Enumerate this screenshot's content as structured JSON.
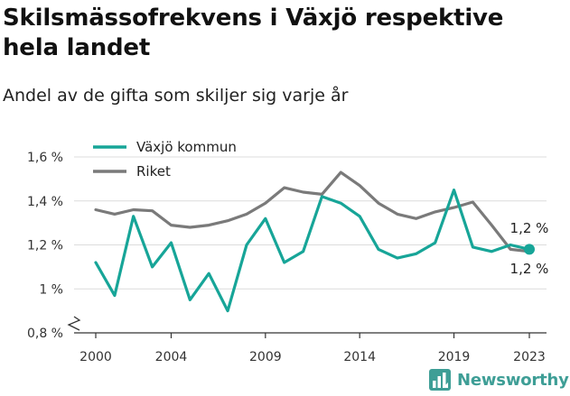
{
  "title": "Skilsmässofrekvens i Växjö respektive hela landet",
  "subtitle": "Andel av de gifta som skiljer sig varje år",
  "brand": {
    "name": "Newsworthy",
    "icon": "newsworthy-logo-icon"
  },
  "colors": {
    "vaxjo": "#17a598",
    "riket": "#7a7a7a",
    "brand": "#3e9e96",
    "grid": "#dcdcdc"
  },
  "chart_data": {
    "type": "line",
    "x": [
      2000,
      2001,
      2002,
      2003,
      2004,
      2005,
      2006,
      2007,
      2008,
      2009,
      2010,
      2011,
      2012,
      2013,
      2014,
      2015,
      2016,
      2017,
      2018,
      2019,
      2020,
      2021,
      2022,
      2023
    ],
    "x_ticks": [
      2000,
      2004,
      2009,
      2014,
      2019,
      2023
    ],
    "x_tick_labels": [
      "2000",
      "2004",
      "2009",
      "2014",
      "2019",
      "2023"
    ],
    "y_ticks": [
      0.8,
      1.0,
      1.2,
      1.4,
      1.6
    ],
    "y_tick_labels": [
      "0,8 %",
      "1 %",
      "1,2 %",
      "1,4 %",
      "1,6 %"
    ],
    "ylim": [
      0.8,
      1.6
    ],
    "axis_break": true,
    "grid": true,
    "legend_position": "top-left",
    "series": [
      {
        "name": "Växjö kommun",
        "color": "#17a598",
        "values": [
          1.12,
          0.97,
          1.33,
          1.1,
          1.21,
          0.95,
          1.07,
          0.9,
          1.2,
          1.32,
          1.12,
          1.17,
          1.42,
          1.39,
          1.33,
          1.18,
          1.14,
          1.16,
          1.21,
          1.45,
          1.19,
          1.17,
          1.2,
          1.18
        ],
        "end_label": "1,2 %"
      },
      {
        "name": "Riket",
        "color": "#7a7a7a",
        "values": [
          1.36,
          1.34,
          1.36,
          1.355,
          1.29,
          1.28,
          1.29,
          1.31,
          1.34,
          1.39,
          1.46,
          1.44,
          1.43,
          1.53,
          1.47,
          1.39,
          1.34,
          1.32,
          1.35,
          1.37,
          1.395,
          1.29,
          1.18,
          1.17
        ],
        "end_label": "1,2 %"
      }
    ]
  }
}
